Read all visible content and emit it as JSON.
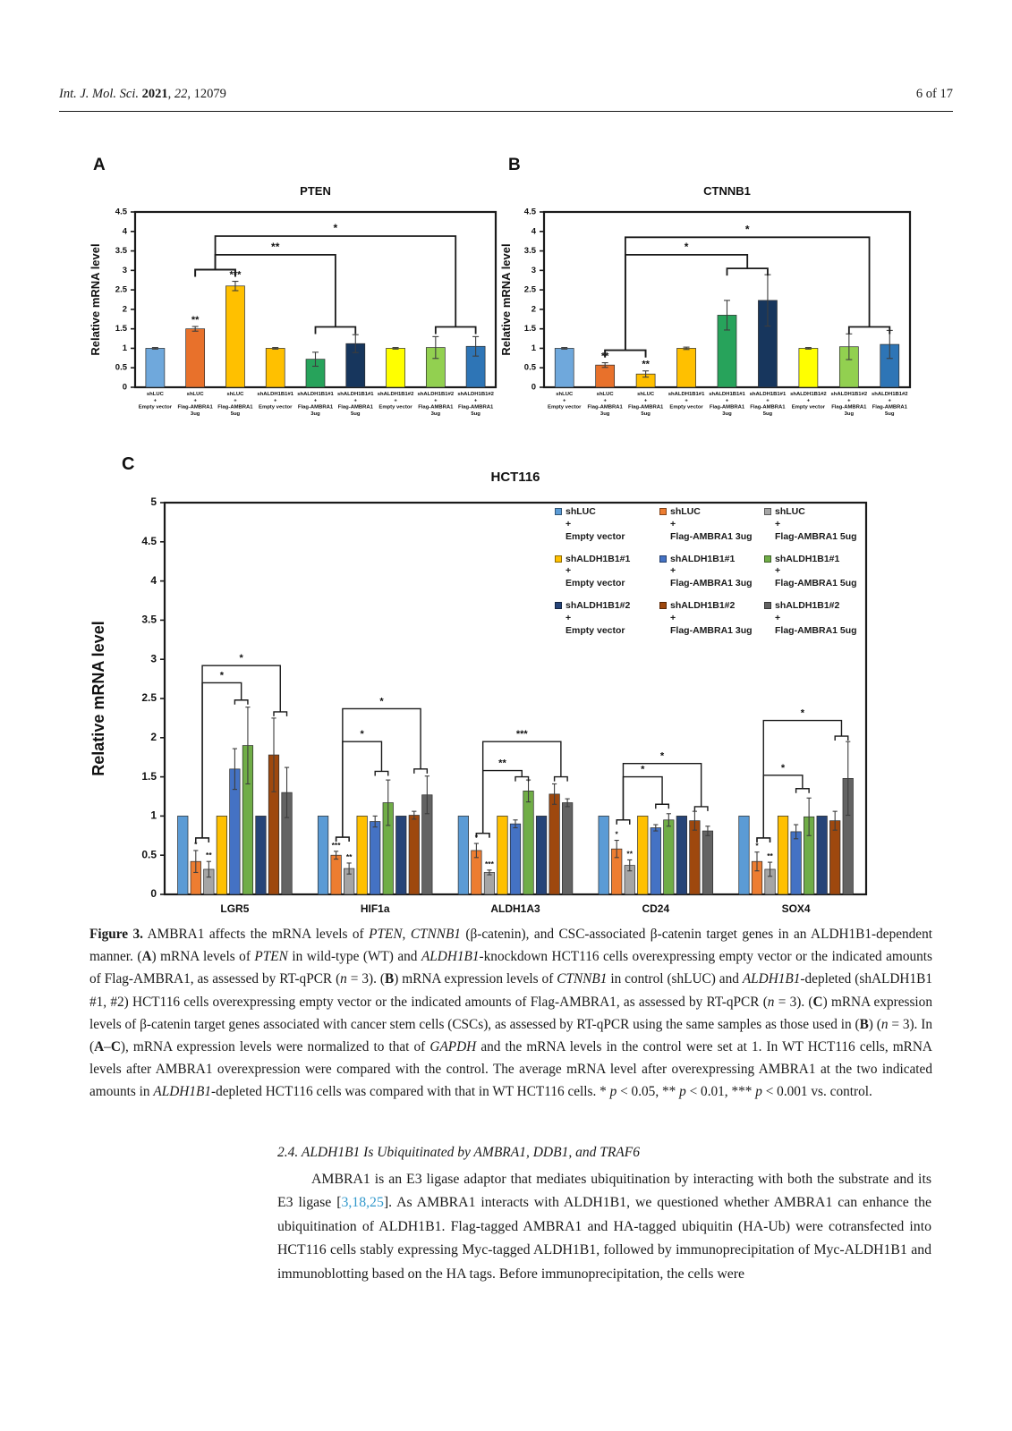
{
  "header": {
    "left_segments": [
      {
        "t": "Int. J. Mol. Sci. ",
        "i": true
      },
      {
        "t": "2021",
        "b": true
      },
      {
        "t": ", "
      },
      {
        "t": "22",
        "i": true
      },
      {
        "t": ", 12079"
      }
    ],
    "right": "6 of 17"
  },
  "chart_data": {
    "panels": {
      "A": {
        "type": "bar",
        "panel_label": "A",
        "title": "PTEN",
        "ylabel": "Relative mRNA level",
        "ylim": [
          0,
          4.5
        ],
        "ystep": 0.5,
        "categories": [
          [
            "shLUC",
            "+",
            "Empty vector"
          ],
          [
            "shLUC",
            "+",
            "Flag-AMBRA1",
            "3ug"
          ],
          [
            "shLUC",
            "+",
            "Flag-AMBRA1",
            "5ug"
          ],
          [
            "shALDH1B1#1",
            "+",
            "Empty vector"
          ],
          [
            "shALDH1B1#1",
            "+",
            "Flag-AMBRA1",
            "3ug"
          ],
          [
            "shALDH1B1#1",
            "+",
            "Flag-AMBRA1",
            "5ug"
          ],
          [
            "shALDH1B1#2",
            "+",
            "Empty vector"
          ],
          [
            "shALDH1B1#2",
            "+",
            "Flag-AMBRA1",
            "3ug"
          ],
          [
            "shALDH1B1#2",
            "+",
            "Flag-AMBRA1",
            "5ug"
          ]
        ],
        "values": [
          1.0,
          1.5,
          2.6,
          1.0,
          0.72,
          1.12,
          1.0,
          1.02,
          1.05
        ],
        "errors": [
          0.02,
          0.06,
          0.12,
          0.02,
          0.18,
          0.23,
          0.02,
          0.28,
          0.25
        ],
        "bar_sig": [
          "",
          "**",
          "***",
          "",
          "",
          "",
          "",
          "",
          ""
        ],
        "colors": [
          "#6FA8DC",
          "#E8712B",
          "#FFC000",
          "#FFC000",
          "#27A35B",
          "#17365D",
          "#FFFF00",
          "#92D050",
          "#2E75B6"
        ],
        "comparisons": [
          {
            "from": [
              1,
              2
            ],
            "to": [
              4,
              5
            ],
            "fromY": 3.02,
            "toY": 1.55,
            "lineY": 3.4,
            "label": "**"
          },
          {
            "from": [
              1,
              2
            ],
            "to": [
              7,
              8
            ],
            "fromY": 3.02,
            "toY": 1.55,
            "lineY": 3.88,
            "label": "*"
          }
        ]
      },
      "B": {
        "type": "bar",
        "panel_label": "B",
        "title": "CTNNB1",
        "ylabel": "Relative mRNA level",
        "ylim": [
          0,
          4.5
        ],
        "ystep": 0.5,
        "categories": [
          [
            "shLUC",
            "+",
            "Empty vector"
          ],
          [
            "shLUC",
            "+",
            "Flag-AMBRA1",
            "3ug"
          ],
          [
            "shLUC",
            "+",
            "Flag-AMBRA1",
            "5ug"
          ],
          [
            "shALDH1B1#1",
            "+",
            "Empty vector"
          ],
          [
            "shALDH1B1#1",
            "+",
            "Flag-AMBRA1",
            "3ug"
          ],
          [
            "shALDH1B1#1",
            "+",
            "Flag-AMBRA1",
            "5ug"
          ],
          [
            "shALDH1B1#2",
            "+",
            "Empty vector"
          ],
          [
            "shALDH1B1#2",
            "+",
            "Flag-AMBRA1",
            "3ug"
          ],
          [
            "shALDH1B1#2",
            "+",
            "Flag-AMBRA1",
            "5ug"
          ]
        ],
        "values": [
          1.0,
          0.57,
          0.34,
          1.0,
          1.85,
          2.23,
          1.0,
          1.04,
          1.1
        ],
        "errors": [
          0.02,
          0.06,
          0.08,
          0.03,
          0.38,
          0.66,
          0.02,
          0.33,
          0.36
        ],
        "bar_sig": [
          "",
          "**",
          "**",
          "",
          "",
          "",
          "",
          "",
          ""
        ],
        "colors": [
          "#6FA8DC",
          "#E8712B",
          "#FFC000",
          "#FFC000",
          "#27A35B",
          "#17365D",
          "#FFFF00",
          "#92D050",
          "#2E75B6"
        ],
        "comparisons": [
          {
            "from": [
              1,
              2
            ],
            "to": [
              4,
              5
            ],
            "fromY": 0.95,
            "toY": 3.05,
            "lineY": 3.4,
            "label": "*"
          },
          {
            "from": [
              1,
              2
            ],
            "to": [
              7,
              8
            ],
            "fromY": 0.95,
            "toY": 1.55,
            "lineY": 3.85,
            "label": "*"
          }
        ]
      },
      "C": {
        "type": "bar",
        "panel_label": "C",
        "title": "HCT116",
        "ylabel": "Relative mRNA level",
        "ylim": [
          0,
          5
        ],
        "ystep": 0.5,
        "colors": [
          "#5B9BD5",
          "#ED7D31",
          "#A5A5A5",
          "#FFC000",
          "#4472C4",
          "#70AD47",
          "#264478",
          "#9E480E",
          "#636363"
        ],
        "legend": [
          {
            "lines": [
              "shLUC",
              "+",
              "Empty vector"
            ]
          },
          {
            "lines": [
              "shLUC",
              "+",
              "Flag-AMBRA1 3ug"
            ]
          },
          {
            "lines": [
              "shLUC",
              "+",
              "Flag-AMBRA1 5ug"
            ]
          },
          {
            "lines": [
              "shALDH1B1#1",
              "+",
              "Empty vector"
            ]
          },
          {
            "lines": [
              "shALDH1B1#1",
              "+",
              "Flag-AMBRA1 3ug"
            ]
          },
          {
            "lines": [
              "shALDH1B1#1",
              "+",
              "Flag-AMBRA1 5ug"
            ]
          },
          {
            "lines": [
              "shALDH1B1#2",
              "+",
              "Empty vector"
            ]
          },
          {
            "lines": [
              "shALDH1B1#2",
              "+",
              "Flag-AMBRA1 3ug"
            ]
          },
          {
            "lines": [
              "shALDH1B1#2",
              "+",
              "Flag-AMBRA1 5ug"
            ]
          }
        ],
        "groups": [
          {
            "name": "LGR5",
            "values": [
              1.0,
              0.42,
              0.32,
              1.0,
              1.6,
              1.9,
              1.0,
              1.78,
              1.3
            ],
            "errors": [
              0,
              0.14,
              0.1,
              0,
              0.26,
              0.49,
              0,
              0.47,
              0.32
            ],
            "bar_sig": [
              "",
              "*",
              "**",
              "",
              "",
              "",
              "",
              "",
              ""
            ],
            "comparisons": [
              {
                "from": [
                  1,
                  2
                ],
                "to": [
                  4,
                  5
                ],
                "fromY": 0.72,
                "toY": 2.48,
                "lineY": 2.7,
                "label": "*"
              },
              {
                "from": [
                  1,
                  2
                ],
                "to": [
                  7,
                  8
                ],
                "fromY": 0.72,
                "toY": 2.33,
                "lineY": 2.92,
                "label": "*"
              }
            ]
          },
          {
            "name": "HIF1a",
            "values": [
              1.0,
              0.5,
              0.33,
              1.0,
              0.93,
              1.17,
              1.0,
              1.01,
              1.27
            ],
            "errors": [
              0,
              0.05,
              0.07,
              0,
              0.07,
              0.29,
              0,
              0.05,
              0.24
            ],
            "bar_sig": [
              "",
              "***",
              "**",
              "",
              "",
              "",
              "",
              "",
              ""
            ],
            "comparisons": [
              {
                "from": [
                  1,
                  2
                ],
                "to": [
                  4,
                  5
                ],
                "fromY": 0.73,
                "toY": 1.57,
                "lineY": 1.95,
                "label": "*"
              },
              {
                "from": [
                  1,
                  2
                ],
                "to": [
                  7,
                  8
                ],
                "fromY": 0.73,
                "toY": 1.6,
                "lineY": 2.37,
                "label": "*"
              }
            ]
          },
          {
            "name": "ALDH1A3",
            "values": [
              1.0,
              0.56,
              0.28,
              1.0,
              0.9,
              1.32,
              1.0,
              1.28,
              1.17
            ],
            "errors": [
              0,
              0.09,
              0.03,
              0,
              0.05,
              0.14,
              0,
              0.13,
              0.05
            ],
            "bar_sig": [
              "",
              "*",
              "***",
              "",
              "",
              "",
              "",
              "",
              ""
            ],
            "comparisons": [
              {
                "from": [
                  1,
                  2
                ],
                "to": [
                  4,
                  5
                ],
                "fromY": 0.78,
                "toY": 1.5,
                "lineY": 1.58,
                "label": "**"
              },
              {
                "from": [
                  1,
                  2
                ],
                "to": [
                  7,
                  8
                ],
                "fromY": 0.78,
                "toY": 1.5,
                "lineY": 1.95,
                "label": "***"
              }
            ]
          },
          {
            "name": "CD24",
            "values": [
              1.0,
              0.58,
              0.37,
              1.0,
              0.85,
              0.95,
              1.0,
              0.94,
              0.81
            ],
            "errors": [
              0,
              0.11,
              0.07,
              0,
              0.04,
              0.08,
              0,
              0.12,
              0.06
            ],
            "bar_sig": [
              "",
              "*",
              "**",
              "",
              "",
              "",
              "",
              "",
              ""
            ],
            "comparisons": [
              {
                "from": [
                  1,
                  2
                ],
                "to": [
                  4,
                  5
                ],
                "fromY": 0.95,
                "toY": 1.15,
                "lineY": 1.5,
                "label": "*"
              },
              {
                "from": [
                  1,
                  2
                ],
                "to": [
                  7,
                  8
                ],
                "fromY": 0.95,
                "toY": 1.12,
                "lineY": 1.67,
                "label": "*"
              }
            ]
          },
          {
            "name": "SOX4",
            "values": [
              1.0,
              0.42,
              0.32,
              1.0,
              0.8,
              0.99,
              1.0,
              0.94,
              1.48
            ],
            "errors": [
              0,
              0.12,
              0.09,
              0,
              0.09,
              0.24,
              0,
              0.12,
              0.47
            ],
            "bar_sig": [
              "",
              "*",
              "**",
              "",
              "",
              "",
              "",
              "",
              ""
            ],
            "comparisons": [
              {
                "from": [
                  1,
                  2
                ],
                "to": [
                  4,
                  5
                ],
                "fromY": 0.72,
                "toY": 1.35,
                "lineY": 1.52,
                "label": "*"
              },
              {
                "from": [
                  1,
                  2
                ],
                "to": [
                  7,
                  8
                ],
                "fromY": 0.72,
                "toY": 2.02,
                "lineY": 2.22,
                "label": "*"
              }
            ]
          }
        ]
      }
    }
  },
  "caption": {
    "segments": [
      {
        "t": "Figure 3.",
        "b": true
      },
      {
        "t": " AMBRA1 affects the mRNA levels of "
      },
      {
        "t": "PTEN",
        "i": true
      },
      {
        "t": ", "
      },
      {
        "t": "CTNNB1",
        "i": true
      },
      {
        "t": " (β-catenin), and CSC-associated β-catenin target genes in an ALDH1B1-dependent manner. ("
      },
      {
        "t": "A",
        "b": true
      },
      {
        "t": ") mRNA levels of "
      },
      {
        "t": "PTEN",
        "i": true
      },
      {
        "t": " in wild-type (WT) and "
      },
      {
        "t": "ALDH1B1",
        "i": true
      },
      {
        "t": "-knockdown HCT116 cells overexpressing empty vector or the indicated amounts of Flag-AMBRA1, as assessed by RT-qPCR ("
      },
      {
        "t": "n",
        "i": true
      },
      {
        "t": " = 3). ("
      },
      {
        "t": "B",
        "b": true
      },
      {
        "t": ") mRNA expression levels of "
      },
      {
        "t": "CTNNB1",
        "i": true
      },
      {
        "t": " in control (shLUC) and "
      },
      {
        "t": "ALDH1B1",
        "i": true
      },
      {
        "t": "-depleted (shALDH1B1 #1, #2) HCT116 cells overexpressing empty vector or the indicated amounts of Flag-AMBRA1, as assessed by RT-qPCR ("
      },
      {
        "t": "n",
        "i": true
      },
      {
        "t": " = 3). ("
      },
      {
        "t": "C",
        "b": true
      },
      {
        "t": ") mRNA expression levels of β-catenin target genes associated with cancer stem cells (CSCs), as assessed by RT-qPCR using the same samples as those used in ("
      },
      {
        "t": "B",
        "b": true
      },
      {
        "t": ") ("
      },
      {
        "t": "n",
        "i": true
      },
      {
        "t": " = 3). In ("
      },
      {
        "t": "A",
        "b": true
      },
      {
        "t": "–"
      },
      {
        "t": "C",
        "b": true
      },
      {
        "t": "), mRNA expression levels were normalized to that of "
      },
      {
        "t": "GAPDH",
        "i": true
      },
      {
        "t": " and the mRNA levels in the control were set at 1. In WT HCT116 cells, mRNA levels after AMBRA1 overexpression were compared with the control. The average mRNA level after overexpressing AMBRA1 at the two indicated amounts in "
      },
      {
        "t": "ALDH1B1",
        "i": true
      },
      {
        "t": "-depleted HCT116 cells was compared with that in WT HCT116 cells. * "
      },
      {
        "t": "p",
        "i": true
      },
      {
        "t": " < 0.05, ** "
      },
      {
        "t": "p",
        "i": true
      },
      {
        "t": " < 0.01, *** "
      },
      {
        "t": "p",
        "i": true
      },
      {
        "t": " < 0.001 vs. control."
      }
    ]
  },
  "section": {
    "heading": "2.4. ALDH1B1 Is Ubiquitinated by AMBRA1, DDB1, and TRAF6"
  },
  "paragraph": {
    "segments": [
      {
        "t": "AMBRA1 is an E3 ligase adaptor that mediates ubiquitination by interacting with both the substrate and its E3 ligase ["
      },
      {
        "t": "3,18,25",
        "link": true
      },
      {
        "t": "]. As AMBRA1 interacts with ALDH1B1, we questioned whether AMBRA1 can enhance the ubiquitination of ALDH1B1. Flag-tagged AMBRA1 and HA-tagged ubiquitin (HA-Ub) were cotransfected into HCT116 cells stably expressing Myc-tagged ALDH1B1, followed by immunoprecipitation of Myc-ALDH1B1 and immunoblotting based on the HA tags. Before immunoprecipitation, the cells were"
      }
    ]
  }
}
